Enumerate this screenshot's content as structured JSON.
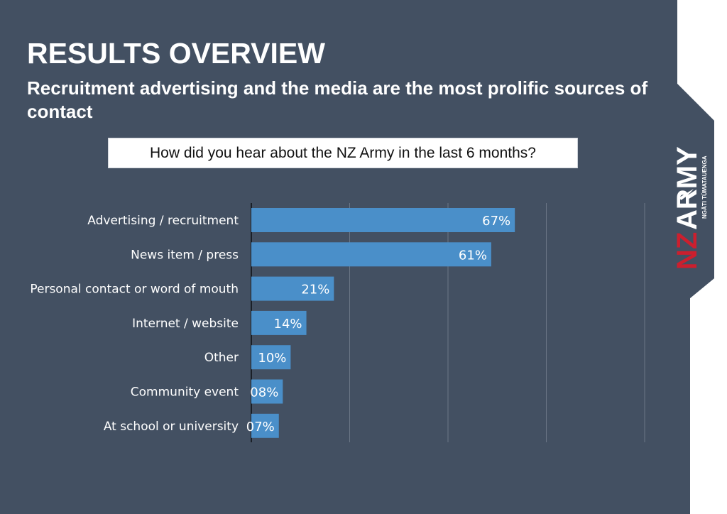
{
  "header": {
    "title": "RESULTS OVERVIEW",
    "subtitle": "Recruitment advertising and the media are the most prolific sources of contact",
    "question": "How did you hear about the NZ Army in the last 6 months?"
  },
  "logo": {
    "brand_nz": "NZ",
    "brand_army": "ARMY",
    "tagline": "NGĀTI TŪMATAUENGA",
    "nz_color": "#cc1f2e"
  },
  "colors": {
    "background": "#435062",
    "bar": "#4a8fc9",
    "strip": "#ffffff"
  },
  "chart_data": {
    "type": "bar",
    "orientation": "horizontal",
    "categories": [
      "Advertising / recruitment",
      "News item / press",
      "Personal contact or word of mouth",
      "Internet / website",
      "Other",
      "Community event",
      "At school or university"
    ],
    "values": [
      67,
      61,
      21,
      14,
      10,
      8,
      7
    ],
    "value_labels": [
      "67%",
      "61%",
      "21%",
      "14%",
      "10%",
      "08%",
      "07%"
    ],
    "xlim": [
      0,
      100
    ],
    "grid": true,
    "legend": "none"
  }
}
